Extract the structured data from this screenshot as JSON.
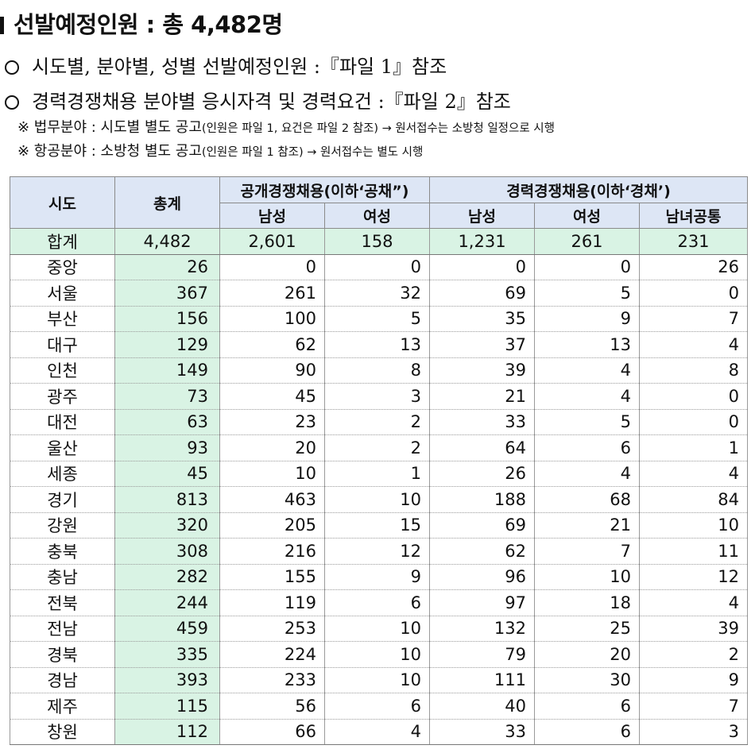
{
  "title": "선발예정인원 : 총 4,482명",
  "lines": [
    "시도별, 분야별, 성별 선발예정인원 :『파일 1』참조",
    "경력경쟁채용 분야별 응시자격 및 경력요건 :『파일 2』참조"
  ],
  "notes": [
    {
      "main": "※ 법무분야 : 시도별 별도 공고",
      "small": "(인원은 파일 1, 요건은 파일 2 참조) → 원서접수는 소방청 일정으로 시행"
    },
    {
      "main": "※ 항공분야 : 소방청 별도 공고",
      "small": "(인원은 파일 1 참조) → 원서접수는 별도 시행"
    }
  ],
  "table": {
    "headers": {
      "region": "시도",
      "total": "총계",
      "open": "공개경쟁채용(이하‘공채”)",
      "career": "경력경쟁채용(이하‘경채’)",
      "male": "남성",
      "female": "여성",
      "common": "남녀공통"
    },
    "sum": {
      "region": "합계",
      "total": "4,482",
      "values": [
        "2,601",
        "158",
        "1,231",
        "261",
        "231"
      ]
    },
    "rows": [
      {
        "region": "중앙",
        "total": "26",
        "values": [
          "0",
          "0",
          "0",
          "0",
          "26"
        ]
      },
      {
        "region": "서울",
        "total": "367",
        "values": [
          "261",
          "32",
          "69",
          "5",
          "0"
        ]
      },
      {
        "region": "부산",
        "total": "156",
        "values": [
          "100",
          "5",
          "35",
          "9",
          "7"
        ]
      },
      {
        "region": "대구",
        "total": "129",
        "values": [
          "62",
          "13",
          "37",
          "13",
          "4"
        ]
      },
      {
        "region": "인천",
        "total": "149",
        "values": [
          "90",
          "8",
          "39",
          "4",
          "8"
        ]
      },
      {
        "region": "광주",
        "total": "73",
        "values": [
          "45",
          "3",
          "21",
          "4",
          "0"
        ]
      },
      {
        "region": "대전",
        "total": "63",
        "values": [
          "23",
          "2",
          "33",
          "5",
          "0"
        ]
      },
      {
        "region": "울산",
        "total": "93",
        "values": [
          "20",
          "2",
          "64",
          "6",
          "1"
        ]
      },
      {
        "region": "세종",
        "total": "45",
        "values": [
          "10",
          "1",
          "26",
          "4",
          "4"
        ]
      },
      {
        "region": "경기",
        "total": "813",
        "values": [
          "463",
          "10",
          "188",
          "68",
          "84"
        ]
      },
      {
        "region": "강원",
        "total": "320",
        "values": [
          "205",
          "15",
          "69",
          "21",
          "10"
        ]
      },
      {
        "region": "충북",
        "total": "308",
        "values": [
          "216",
          "12",
          "62",
          "7",
          "11"
        ]
      },
      {
        "region": "충남",
        "total": "282",
        "values": [
          "155",
          "9",
          "96",
          "10",
          "12"
        ]
      },
      {
        "region": "전북",
        "total": "244",
        "values": [
          "119",
          "6",
          "97",
          "18",
          "4"
        ]
      },
      {
        "region": "전남",
        "total": "459",
        "values": [
          "253",
          "10",
          "132",
          "25",
          "39"
        ]
      },
      {
        "region": "경북",
        "total": "335",
        "values": [
          "224",
          "10",
          "79",
          "20",
          "2"
        ]
      },
      {
        "region": "경남",
        "total": "393",
        "values": [
          "233",
          "10",
          "111",
          "30",
          "9"
        ]
      },
      {
        "region": "제주",
        "total": "115",
        "values": [
          "56",
          "6",
          "40",
          "6",
          "7"
        ]
      },
      {
        "region": "창원",
        "total": "112",
        "values": [
          "66",
          "4",
          "33",
          "6",
          "3"
        ]
      }
    ]
  }
}
